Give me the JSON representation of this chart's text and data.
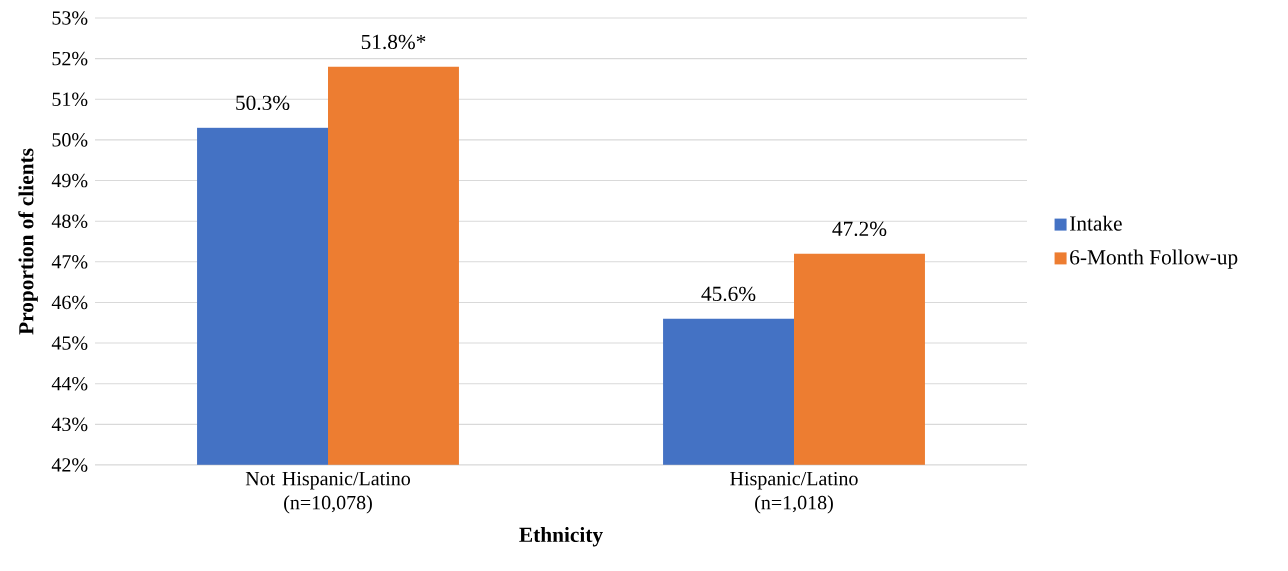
{
  "chart_data": {
    "type": "bar",
    "xlabel": "Ethnicity",
    "ylabel": "Proportion of clients",
    "categories": [
      "Not Hispanic/Latino (n=10,078)",
      "Hispanic/Latino (n=1,018)"
    ],
    "series": [
      {
        "name": "Intake",
        "color": "#4472c4",
        "values": [
          50.3,
          45.6
        ],
        "value_labels": [
          "50.3%",
          "45.6%"
        ]
      },
      {
        "name": "6-Month Follow-up",
        "color": "#ed7d31",
        "values": [
          51.8,
          47.2
        ],
        "value_labels": [
          "51.8%*",
          "47.2%"
        ]
      }
    ],
    "ylim": [
      42,
      53
    ],
    "yticks": [
      {
        "value": 42,
        "label": "42%"
      },
      {
        "value": 43,
        "label": "43%"
      },
      {
        "value": 44,
        "label": "44%"
      },
      {
        "value": 45,
        "label": "45%"
      },
      {
        "value": 46,
        "label": "46%"
      },
      {
        "value": 47,
        "label": "47%"
      },
      {
        "value": 48,
        "label": "48%"
      },
      {
        "value": 49,
        "label": "49%"
      },
      {
        "value": 50,
        "label": "50%"
      },
      {
        "value": 51,
        "label": "51%"
      },
      {
        "value": 52,
        "label": "52%"
      },
      {
        "value": 53,
        "label": "53%"
      }
    ],
    "grid": "y",
    "legend": "right"
  }
}
